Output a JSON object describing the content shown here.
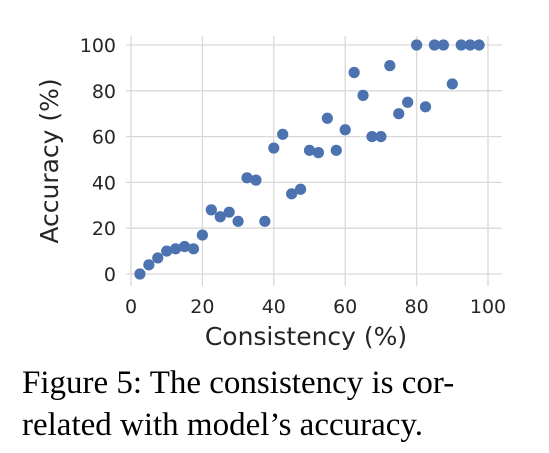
{
  "chart_data": {
    "type": "scatter",
    "xlabel": "Consistency (%)",
    "ylabel": "Accuracy (%)",
    "xlim": [
      0,
      100
    ],
    "ylim": [
      0,
      100
    ],
    "xticks": [
      0,
      20,
      40,
      60,
      80,
      100
    ],
    "yticks": [
      0,
      20,
      40,
      60,
      80,
      100
    ],
    "grid": true,
    "marker_color": "#4c72b0",
    "points": [
      {
        "x": 2.5,
        "y": 0
      },
      {
        "x": 5,
        "y": 4
      },
      {
        "x": 7.5,
        "y": 7
      },
      {
        "x": 10,
        "y": 10
      },
      {
        "x": 12.5,
        "y": 11
      },
      {
        "x": 15,
        "y": 12
      },
      {
        "x": 17.5,
        "y": 11
      },
      {
        "x": 20,
        "y": 17
      },
      {
        "x": 22.5,
        "y": 28
      },
      {
        "x": 25,
        "y": 25
      },
      {
        "x": 27.5,
        "y": 27
      },
      {
        "x": 30,
        "y": 23
      },
      {
        "x": 32.5,
        "y": 42
      },
      {
        "x": 35,
        "y": 41
      },
      {
        "x": 37.5,
        "y": 23
      },
      {
        "x": 40,
        "y": 55
      },
      {
        "x": 42.5,
        "y": 61
      },
      {
        "x": 45,
        "y": 35
      },
      {
        "x": 47.5,
        "y": 37
      },
      {
        "x": 50,
        "y": 54
      },
      {
        "x": 52.5,
        "y": 53
      },
      {
        "x": 55,
        "y": 68
      },
      {
        "x": 57.5,
        "y": 54
      },
      {
        "x": 60,
        "y": 63
      },
      {
        "x": 62.5,
        "y": 88
      },
      {
        "x": 65,
        "y": 78
      },
      {
        "x": 67.5,
        "y": 60
      },
      {
        "x": 70,
        "y": 60
      },
      {
        "x": 72.5,
        "y": 91
      },
      {
        "x": 75,
        "y": 70
      },
      {
        "x": 77.5,
        "y": 75
      },
      {
        "x": 80,
        "y": 100
      },
      {
        "x": 82.5,
        "y": 73
      },
      {
        "x": 85,
        "y": 100
      },
      {
        "x": 87.5,
        "y": 100
      },
      {
        "x": 90,
        "y": 83
      },
      {
        "x": 92.5,
        "y": 100
      },
      {
        "x": 95,
        "y": 100
      },
      {
        "x": 97.5,
        "y": 100
      }
    ]
  },
  "caption": {
    "line1": "Figure 5: The consistency is cor-",
    "line2": "related with model’s accuracy."
  }
}
